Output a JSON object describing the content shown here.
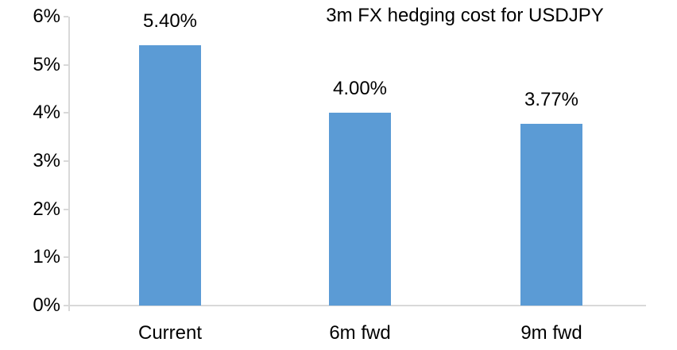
{
  "chart_data": {
    "type": "bar",
    "title": "3m FX hedging cost for USDJPY",
    "categories": [
      "Current",
      "6m fwd",
      "9m fwd"
    ],
    "values": [
      5.4,
      4.0,
      3.77
    ],
    "data_labels": [
      "5.40%",
      "4.00%",
      "3.77%"
    ],
    "xlabel": "",
    "ylabel": "",
    "ylim": [
      0,
      6
    ],
    "y_ticks": [
      0,
      1,
      2,
      3,
      4,
      5,
      6
    ],
    "y_tick_labels": [
      "0%",
      "1%",
      "2%",
      "3%",
      "4%",
      "5%",
      "6%"
    ],
    "grid": false,
    "legend": false,
    "colors": {
      "bar": "#5B9BD5",
      "axis": "#D9D9D9",
      "text": "#000000",
      "background": "#FFFFFF"
    }
  }
}
